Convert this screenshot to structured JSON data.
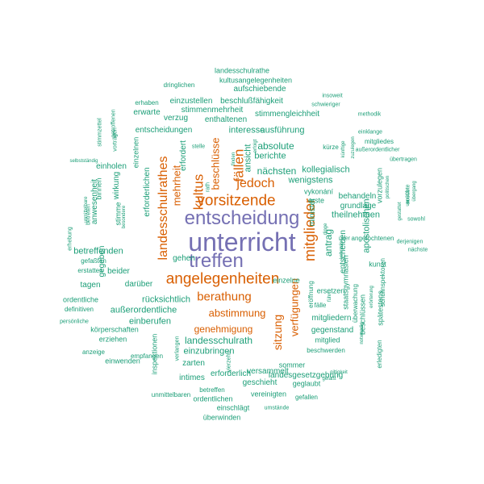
{
  "palette": {
    "purple": "#7570b3",
    "orange": "#d95f02",
    "teal": "#1b9e77"
  },
  "words": [
    {
      "t": "unterricht",
      "c": "purple",
      "r": 0
    },
    {
      "t": "entscheidung",
      "c": "purple",
      "r": 0
    },
    {
      "t": "treffen",
      "c": "purple",
      "r": 0
    },
    {
      "t": "angelegenheiten",
      "c": "orange",
      "r": 0
    },
    {
      "t": "vorsitzende",
      "c": "orange",
      "r": 0
    },
    {
      "t": "berathung",
      "c": "orange",
      "r": 0
    },
    {
      "t": "mitglieder",
      "c": "orange",
      "r": -90
    },
    {
      "t": "landesschulrathes",
      "c": "orange",
      "r": -90
    },
    {
      "t": "kultus",
      "c": "orange",
      "r": -90
    },
    {
      "t": "fällen",
      "c": "orange",
      "r": -90
    },
    {
      "t": "jedoch",
      "c": "orange",
      "r": 0
    },
    {
      "t": "mehrheit",
      "c": "orange",
      "r": -90
    },
    {
      "t": "abstimmung",
      "c": "orange",
      "r": 0
    },
    {
      "t": "sitzung",
      "c": "orange",
      "r": -90
    },
    {
      "t": "genehmigung",
      "c": "orange",
      "r": 0
    },
    {
      "t": "beschlüsse",
      "c": "orange",
      "r": -90
    },
    {
      "t": "verfügungen",
      "c": "orange",
      "r": -90
    },
    {
      "t": "landesschulrath",
      "c": "teal",
      "r": 0
    },
    {
      "t": "nächsten",
      "c": "teal",
      "r": 0
    },
    {
      "t": "absolute",
      "c": "teal",
      "r": 0
    },
    {
      "t": "interesse",
      "c": "teal",
      "r": 0
    },
    {
      "t": "ansicht",
      "c": "teal",
      "r": -90
    },
    {
      "t": "berichte",
      "c": "teal",
      "r": 0
    },
    {
      "t": "ausführung",
      "c": "teal",
      "r": 0
    },
    {
      "t": "wenigstens",
      "c": "teal",
      "r": 0
    },
    {
      "t": "antrag",
      "c": "teal",
      "r": -90
    },
    {
      "t": "kollegialisch",
      "c": "teal",
      "r": 0
    },
    {
      "t": "minister",
      "c": "teal",
      "r": -90
    },
    {
      "t": "entscheiden",
      "c": "teal",
      "r": -90
    },
    {
      "t": "betreffenden",
      "c": "teal",
      "r": 0
    },
    {
      "t": "erforderlichen",
      "c": "teal",
      "r": -90
    },
    {
      "t": "erfordert",
      "c": "teal",
      "r": -90
    },
    {
      "t": "einzubringen",
      "c": "teal",
      "r": 0
    },
    {
      "t": "rücksichtlich",
      "c": "teal",
      "r": 0
    },
    {
      "t": "außerordentliche",
      "c": "teal",
      "r": 0
    },
    {
      "t": "einberufen",
      "c": "teal",
      "r": 0
    },
    {
      "t": "entscheidungen",
      "c": "teal",
      "r": 0
    },
    {
      "t": "stimmenmehrheit",
      "c": "teal",
      "r": 0
    },
    {
      "t": "stimmengleichheit",
      "c": "teal",
      "r": 0
    },
    {
      "t": "beschlußfähigkeit",
      "c": "teal",
      "r": 0
    },
    {
      "t": "aufschiebende",
      "c": "teal",
      "r": 0
    },
    {
      "t": "einzustellen",
      "c": "teal",
      "r": 0
    },
    {
      "t": "enthaltenen",
      "c": "teal",
      "r": 0
    },
    {
      "t": "verzug",
      "c": "teal",
      "r": 0
    },
    {
      "t": "erwarte",
      "c": "teal",
      "r": 0
    },
    {
      "t": "kultusangelegenheiten",
      "c": "teal",
      "r": 0
    },
    {
      "t": "landesschulrathe",
      "c": "teal",
      "r": 0
    },
    {
      "t": "dringlichen",
      "c": "teal",
      "r": 0
    },
    {
      "t": "erhaben",
      "c": "teal",
      "r": 0
    },
    {
      "t": "insoweit",
      "c": "teal",
      "r": 0
    },
    {
      "t": "schwieriger",
      "c": "teal",
      "r": 0
    },
    {
      "t": "methodik",
      "c": "teal",
      "r": 0
    },
    {
      "t": "einklange",
      "c": "teal",
      "r": 0
    },
    {
      "t": "außerordentlicher",
      "c": "teal",
      "r": 0
    },
    {
      "t": "übertragen",
      "c": "teal",
      "r": 0
    },
    {
      "t": "mitgliedes",
      "c": "teal",
      "r": 0
    },
    {
      "t": "einholen",
      "c": "teal",
      "r": 0
    },
    {
      "t": "einzelnen",
      "c": "teal",
      "r": -90
    },
    {
      "t": "wirkung",
      "c": "teal",
      "r": -90
    },
    {
      "t": "anwesenheit",
      "c": "teal",
      "r": -90
    },
    {
      "t": "stimme",
      "c": "teal",
      "r": -90
    },
    {
      "t": "binnen",
      "c": "teal",
      "r": -90
    },
    {
      "t": "gegeben",
      "c": "teal",
      "r": -90
    },
    {
      "t": "beider",
      "c": "teal",
      "r": 0
    },
    {
      "t": "darüber",
      "c": "teal",
      "r": 0
    },
    {
      "t": "gehen",
      "c": "teal",
      "r": 0
    },
    {
      "t": "tagen",
      "c": "teal",
      "r": 0
    },
    {
      "t": "gefaßten",
      "c": "teal",
      "r": 0
    },
    {
      "t": "erstatten",
      "c": "teal",
      "r": 0
    },
    {
      "t": "ordentliche",
      "c": "teal",
      "r": 0
    },
    {
      "t": "definitiven",
      "c": "teal",
      "r": 0
    },
    {
      "t": "persönliche",
      "c": "teal",
      "r": 0
    },
    {
      "t": "körperschaften",
      "c": "teal",
      "r": 0
    },
    {
      "t": "erziehen",
      "c": "teal",
      "r": 0
    },
    {
      "t": "anzeige",
      "c": "teal",
      "r": 0
    },
    {
      "t": "einwenden",
      "c": "teal",
      "r": 0
    },
    {
      "t": "empfangen",
      "c": "teal",
      "r": 0
    },
    {
      "t": "inspektionen",
      "c": "teal",
      "r": -90
    },
    {
      "t": "verlangen",
      "c": "teal",
      "r": -90
    },
    {
      "t": "vierzehn",
      "c": "teal",
      "r": -90
    },
    {
      "t": "zarten",
      "c": "teal",
      "r": 0
    },
    {
      "t": "intimes",
      "c": "teal",
      "r": 0
    },
    {
      "t": "erforderlich",
      "c": "teal",
      "r": 0
    },
    {
      "t": "geschieht",
      "c": "teal",
      "r": 0
    },
    {
      "t": "betreffen",
      "c": "teal",
      "r": 0
    },
    {
      "t": "ordentlichen",
      "c": "teal",
      "r": 0
    },
    {
      "t": "unmittelbaren",
      "c": "teal",
      "r": 0
    },
    {
      "t": "vereinigten",
      "c": "teal",
      "r": 0
    },
    {
      "t": "gefallen",
      "c": "teal",
      "r": 0
    },
    {
      "t": "einschlägt",
      "c": "teal",
      "r": 0
    },
    {
      "t": "umstände",
      "c": "teal",
      "r": 0
    },
    {
      "t": "überwinden",
      "c": "teal",
      "r": 0
    },
    {
      "t": "geglaubt",
      "c": "teal",
      "r": 0
    },
    {
      "t": "landesgesetzgebung",
      "c": "teal",
      "r": 0
    },
    {
      "t": "sommer",
      "c": "teal",
      "r": 0
    },
    {
      "t": "versammelt",
      "c": "teal",
      "r": 0
    },
    {
      "t": "einzelne",
      "c": "teal",
      "r": 0
    },
    {
      "t": "eröffnung",
      "c": "teal",
      "r": -90
    },
    {
      "t": "fälle",
      "c": "teal",
      "r": 0
    },
    {
      "t": "mitgliedern",
      "c": "teal",
      "r": 0
    },
    {
      "t": "gegenstand",
      "c": "teal",
      "r": 0
    },
    {
      "t": "mitglied",
      "c": "teal",
      "r": 0
    },
    {
      "t": "beschwerden",
      "c": "teal",
      "r": 0
    },
    {
      "t": "gefaßt",
      "c": "teal",
      "r": 0
    },
    {
      "t": "giltigkeit",
      "c": "teal",
      "r": 0
    },
    {
      "t": "notwendig",
      "c": "teal",
      "r": -90
    },
    {
      "t": "erledigten",
      "c": "teal",
      "r": -90
    },
    {
      "t": "ersetzen",
      "c": "teal",
      "r": 0
    },
    {
      "t": "staatsgymnasien",
      "c": "teal",
      "r": -90
    },
    {
      "t": "überwachung",
      "c": "teal",
      "r": -90
    },
    {
      "t": "beschlüssen",
      "c": "teal",
      "r": -90
    },
    {
      "t": "kunst",
      "c": "teal",
      "r": 0
    },
    {
      "t": "erörterung",
      "c": "teal",
      "r": -90
    },
    {
      "t": "spätestens",
      "c": "teal",
      "r": -90
    },
    {
      "t": "schulinspektoren",
      "c": "teal",
      "r": -90
    },
    {
      "t": "kenntnis",
      "c": "teal",
      "r": -90
    },
    {
      "t": "apostolischen",
      "c": "teal",
      "r": -90
    },
    {
      "t": "angefochtenen",
      "c": "teal",
      "r": 0
    },
    {
      "t": "derjenigen",
      "c": "teal",
      "r": 0
    },
    {
      "t": "nächste",
      "c": "teal",
      "r": 0
    },
    {
      "t": "grundlage",
      "c": "teal",
      "r": 0
    },
    {
      "t": "theilnehmen",
      "c": "teal",
      "r": 0
    },
    {
      "t": "behandeln",
      "c": "teal",
      "r": 0
    },
    {
      "t": "sowohl",
      "c": "teal",
      "r": 0
    },
    {
      "t": "vykonání",
      "c": "teal",
      "r": 0
    },
    {
      "t": "erste",
      "c": "teal",
      "r": 0
    },
    {
      "t": "kürze",
      "c": "teal",
      "r": 0
    },
    {
      "t": "künftige",
      "c": "teal",
      "r": -90
    },
    {
      "t": "zuzulegen",
      "c": "teal",
      "r": -90
    },
    {
      "t": "vorzulegen",
      "c": "teal",
      "r": -90
    },
    {
      "t": "politischen",
      "c": "teal",
      "r": -90
    },
    {
      "t": "gestattet",
      "c": "teal",
      "r": -90
    },
    {
      "t": "ausübte",
      "c": "teal",
      "r": -90
    },
    {
      "t": "unmittelbare",
      "c": "teal",
      "r": -90
    },
    {
      "t": "erhebung",
      "c": "teal",
      "r": -90
    },
    {
      "t": "selbstständig",
      "c": "teal",
      "r": 0
    },
    {
      "t": "stimmzettel",
      "c": "teal",
      "r": -90
    },
    {
      "t": "vorträgen",
      "c": "teal",
      "r": -90
    },
    {
      "t": "getroffenen",
      "c": "teal",
      "r": -90
    },
    {
      "t": "betreten",
      "c": "teal",
      "r": -90
    },
    {
      "t": "besondere",
      "c": "teal",
      "r": -90
    },
    {
      "t": "stelle",
      "c": "teal",
      "r": 0
    },
    {
      "t": "erfolgt",
      "c": "teal",
      "r": -90
    },
    {
      "t": "rath",
      "c": "teal",
      "r": -90
    },
    {
      "t": "finden",
      "c": "teal",
      "r": -90
    },
    {
      "t": "dinge",
      "c": "teal",
      "r": -90
    },
    {
      "t": "über",
      "c": "teal",
      "r": 0
    },
    {
      "t": "führt",
      "c": "teal",
      "r": -90
    },
    {
      "t": "übergang",
      "c": "teal",
      "r": -90
    },
    {
      "t": "unnütze",
      "c": "teal",
      "r": -90
    }
  ]
}
